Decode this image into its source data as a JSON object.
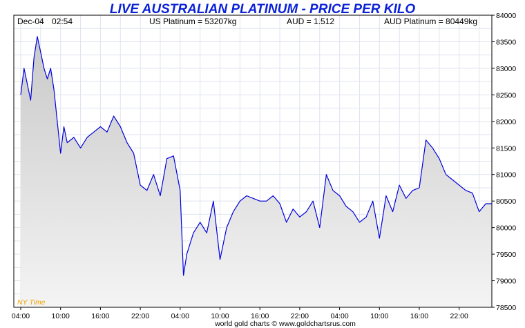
{
  "header": {
    "title": "LIVE AUSTRALIAN PLATINUM - PRICE PER KILO",
    "date": "Dec-04",
    "time": "02:54",
    "us_platinum": "US Platinum = 53207kg",
    "aud": "AUD = 1.512",
    "aud_platinum": "AUD Platinum = 80449kg"
  },
  "timezone_label": "NY Time",
  "footer": "world gold charts © www.goldchartsrus.com",
  "colors": {
    "line": "#0000dd",
    "title": "#0b22d8",
    "timezone": "#f0a000",
    "grid": "#dfe3ef",
    "fill_top": "#c9c9c9",
    "fill_bottom": "#f4f4f4"
  },
  "chart_data": {
    "type": "area",
    "xlabel": "",
    "ylabel": "",
    "x_ticks": [
      "04:00",
      "10:00",
      "16:00",
      "22:00",
      "04:00",
      "10:00",
      "16:00",
      "22:00",
      "04:00",
      "10:00",
      "16:00",
      "22:00"
    ],
    "ylim": [
      78500,
      84000
    ],
    "y_ticks": [
      84000,
      83500,
      83000,
      82500,
      82000,
      81500,
      81000,
      80500,
      80000,
      79500,
      79000,
      78500
    ],
    "grid": true,
    "x": [
      "04:00",
      "04:30",
      "05:00",
      "05:30",
      "06:00",
      "06:30",
      "07:00",
      "07:30",
      "08:00",
      "08:30",
      "09:00",
      "09:30",
      "10:00",
      "10:30",
      "11:00",
      "12:00",
      "13:00",
      "14:00",
      "15:00",
      "16:00",
      "17:00",
      "18:00",
      "19:00",
      "20:00",
      "21:00",
      "22:00",
      "23:00",
      "00:00",
      "01:00",
      "02:00",
      "03:00",
      "04:00",
      "04:30",
      "05:00",
      "06:00",
      "07:00",
      "08:00",
      "09:00",
      "10:00",
      "11:00",
      "12:00",
      "13:00",
      "14:00",
      "15:00",
      "16:00",
      "17:00",
      "18:00",
      "19:00",
      "20:00",
      "21:00",
      "22:00",
      "23:00",
      "00:00",
      "01:00",
      "02:00",
      "03:00",
      "04:00",
      "05:00",
      "06:00",
      "07:00",
      "08:00",
      "09:00",
      "10:00",
      "11:00",
      "12:00",
      "13:00",
      "14:00",
      "15:00",
      "16:00",
      "17:00",
      "18:00",
      "19:00",
      "20:00",
      "21:00",
      "22:00",
      "23:00",
      "00:00",
      "01:00",
      "02:00",
      "02:54"
    ],
    "series": [
      {
        "values": [
          82500,
          83000,
          82700,
          82400,
          83200,
          83600,
          83300,
          83000,
          82800,
          83000,
          82600,
          82000,
          81400,
          81900,
          81600,
          81700,
          81500,
          81700,
          81800,
          81900,
          81800,
          82100,
          81900,
          81600,
          81400,
          80800,
          80700,
          81000,
          80600,
          81300,
          81350,
          80700,
          79100,
          79500,
          79900,
          80100,
          79900,
          80500,
          79400,
          80000,
          80300,
          80500,
          80600,
          80550,
          80500,
          80500,
          80600,
          80450,
          80100,
          80350,
          80200,
          80300,
          80500,
          80000,
          81000,
          80700,
          80600,
          80400,
          80300,
          80100,
          80200,
          80500,
          79800,
          80600,
          80300,
          80800,
          80550,
          80700,
          80750,
          81650,
          81500,
          81300,
          81000,
          80900,
          80800,
          80700,
          80650,
          80300,
          80450,
          80450
        ]
      }
    ]
  }
}
